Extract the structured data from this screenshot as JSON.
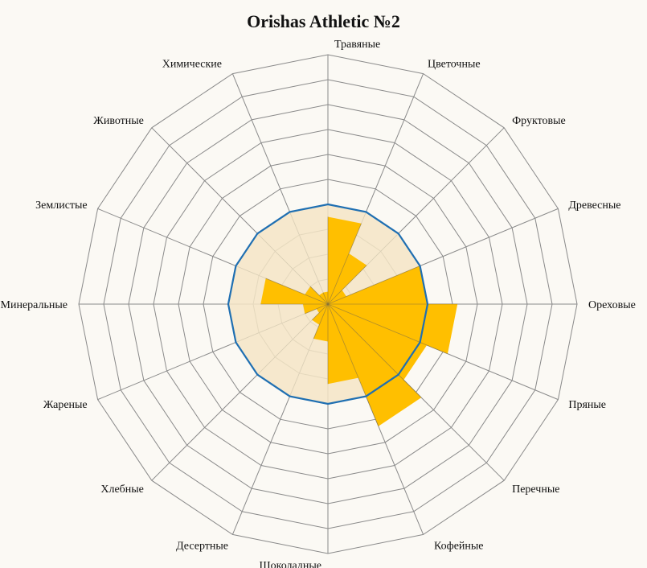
{
  "title": "Orishas Athletic №2",
  "colors": {
    "background": "#fbf9f4",
    "grid": "#8a8a8a",
    "bars": "#ffbf00",
    "background_fill": "#f5e5c6",
    "outline": "#1f6fb2"
  },
  "chart_data": {
    "type": "radar",
    "title": "Orishas Athletic №2",
    "grid_rings": 10,
    "scale_max": 10,
    "categories": [
      "Травяные",
      "Цветочные",
      "Фруктовые",
      "Древесные",
      "Ореховые",
      "Пряные",
      "Перечные",
      "Кофейные",
      "Шоколадные",
      "Десертные",
      "Хлебные",
      "Жареные",
      "Минеральные",
      "Землистые",
      "Животные",
      "Химические"
    ],
    "series": [
      {
        "role": "bars",
        "values": [
          3.5,
          2.2,
          0.8,
          4.0,
          5.2,
          4.3,
          5.3,
          3.2,
          1.5,
          0.9,
          0.5,
          1.0,
          2.7,
          1.0,
          0.5,
          0.5
        ]
      },
      {
        "role": "background",
        "values": [
          4.0,
          4.0,
          4.0,
          4.0,
          4.0,
          4.0,
          4.0,
          4.0,
          4.0,
          4.0,
          4.0,
          4.0,
          4.0,
          4.0,
          4.0,
          4.0
        ]
      },
      {
        "role": "outline",
        "values": [
          4.0,
          4.0,
          4.0,
          4.0,
          4.0,
          4.0,
          4.0,
          4.0,
          4.0,
          4.0,
          4.0,
          4.0,
          4.0,
          4.0,
          4.0,
          4.0
        ]
      }
    ]
  }
}
